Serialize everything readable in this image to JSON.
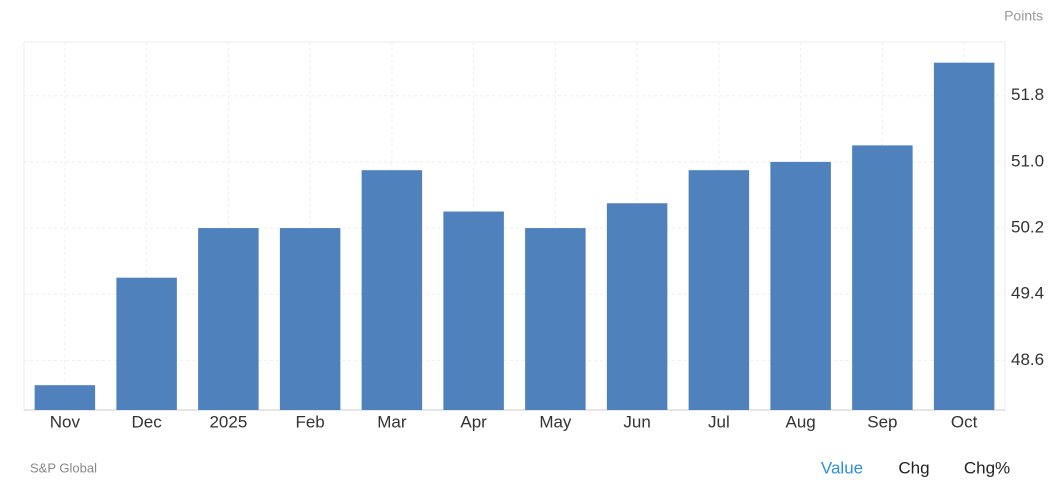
{
  "chart_data": {
    "type": "bar",
    "y_label": "Points",
    "categories": [
      "Nov",
      "Dec",
      "2025",
      "Feb",
      "Mar",
      "Apr",
      "May",
      "Jun",
      "Jul",
      "Aug",
      "Sep",
      "Oct"
    ],
    "values": [
      48.3,
      49.6,
      50.2,
      50.2,
      50.9,
      50.4,
      50.2,
      50.5,
      50.9,
      51.0,
      51.2,
      52.2
    ],
    "color": "#4f81bd",
    "ylim": [
      48.0,
      52.45
    ],
    "yticks": [
      48.6,
      49.4,
      50.2,
      {
        "value": 51.0,
        "label": "51.0"
      },
      51.8
    ],
    "grid": true
  },
  "source": "S&P Global",
  "tabs": [
    "Value",
    "Chg",
    "Chg%"
  ]
}
